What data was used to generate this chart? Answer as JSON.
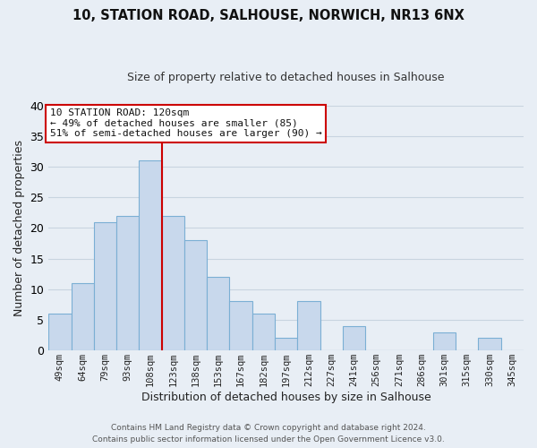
{
  "title1": "10, STATION ROAD, SALHOUSE, NORWICH, NR13 6NX",
  "title2": "Size of property relative to detached houses in Salhouse",
  "xlabel": "Distribution of detached houses by size in Salhouse",
  "ylabel": "Number of detached properties",
  "bar_color": "#c8d8ec",
  "bar_edge_color": "#7bafd4",
  "categories": [
    "49sqm",
    "64sqm",
    "79sqm",
    "93sqm",
    "108sqm",
    "123sqm",
    "138sqm",
    "153sqm",
    "167sqm",
    "182sqm",
    "197sqm",
    "212sqm",
    "227sqm",
    "241sqm",
    "256sqm",
    "271sqm",
    "286sqm",
    "301sqm",
    "315sqm",
    "330sqm",
    "345sqm"
  ],
  "values": [
    6,
    11,
    21,
    22,
    31,
    22,
    18,
    12,
    8,
    6,
    2,
    8,
    0,
    4,
    0,
    0,
    0,
    3,
    0,
    2,
    0
  ],
  "vline_index": 4.5,
  "vline_color": "#cc0000",
  "annotation_line1": "10 STATION ROAD: 120sqm",
  "annotation_line2": "← 49% of detached houses are smaller (85)",
  "annotation_line3": "51% of semi-detached houses are larger (90) →",
  "annotation_box_color": "#ffffff",
  "annotation_box_edge": "#cc0000",
  "footer1": "Contains HM Land Registry data © Crown copyright and database right 2024.",
  "footer2": "Contains public sector information licensed under the Open Government Licence v3.0.",
  "ylim": [
    0,
    40
  ],
  "background_color": "#e8eef5",
  "grid_color": "#c8d4e0"
}
